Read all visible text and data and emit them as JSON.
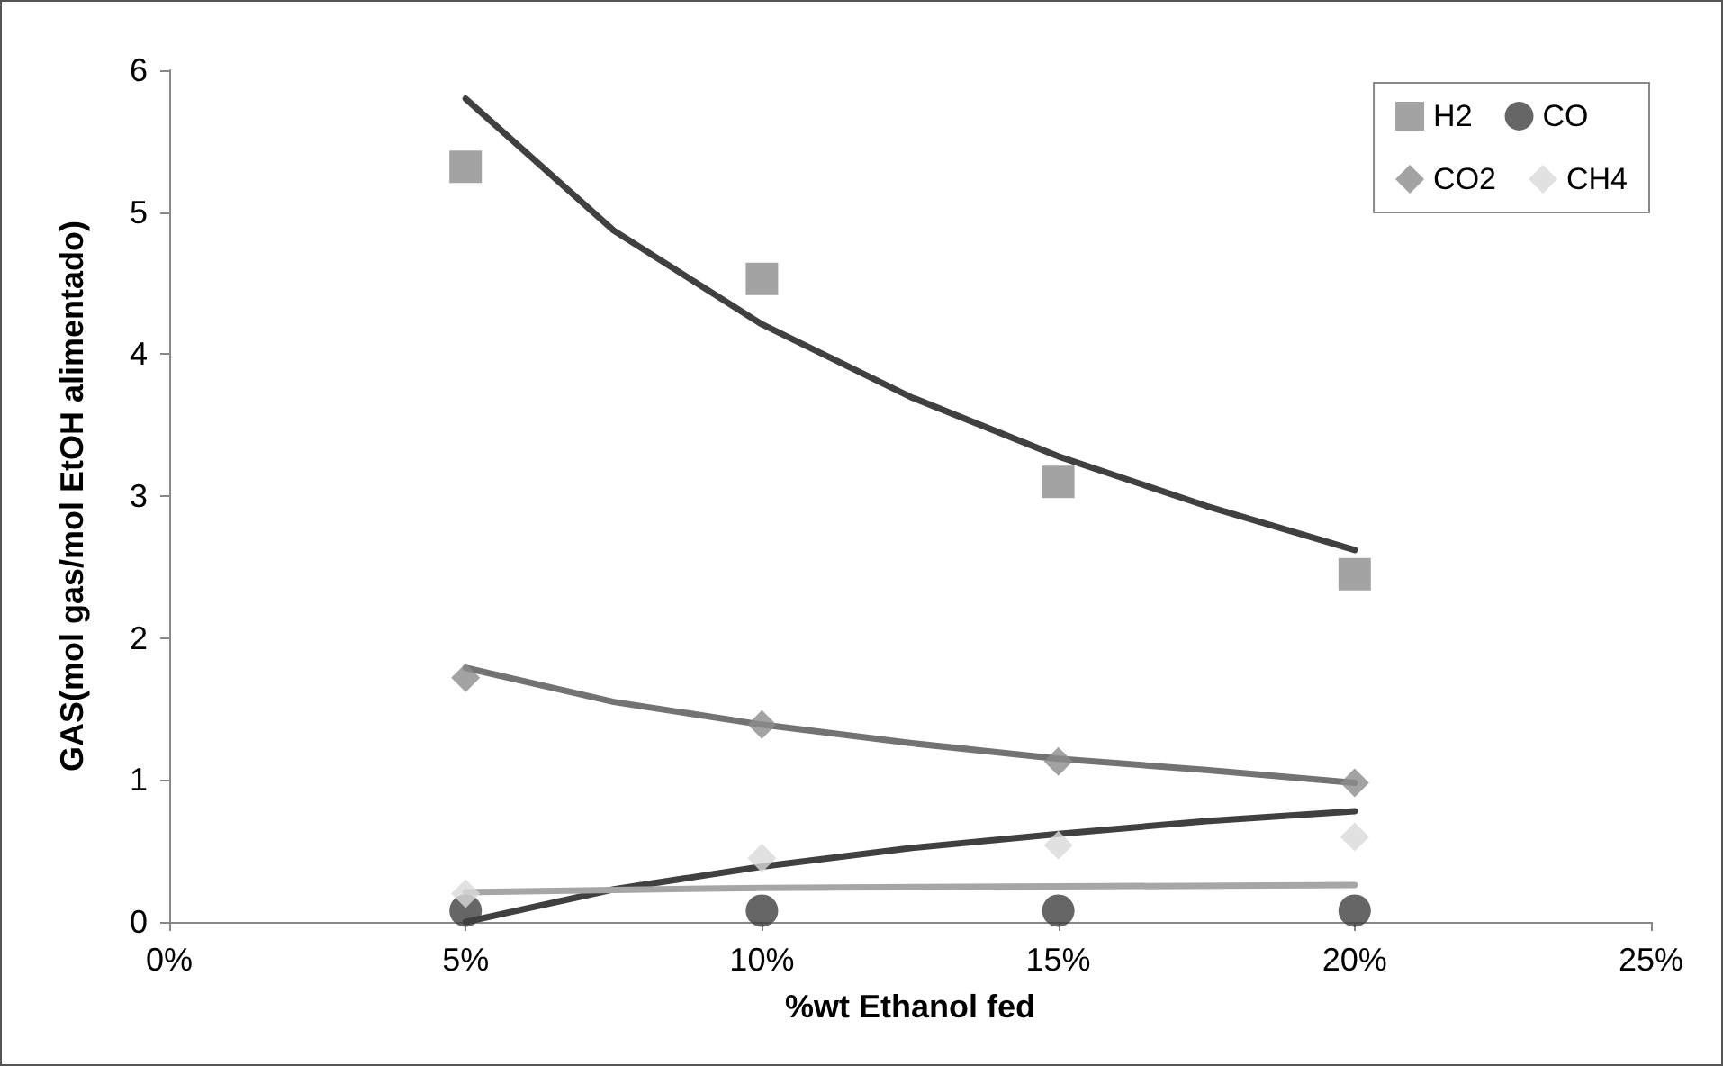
{
  "chart_data": {
    "type": "scatter",
    "xlabel": "%wt Ethanol fed",
    "ylabel": "GAS(mol gas/mol EtOH alimentado)",
    "x": [
      5,
      10,
      15,
      20
    ],
    "xlim": [
      0,
      25
    ],
    "xticks": [
      {
        "value": 0,
        "label": "0%"
      },
      {
        "value": 5,
        "label": "5%"
      },
      {
        "value": 10,
        "label": "10%"
      },
      {
        "value": 15,
        "label": "15%"
      },
      {
        "value": 20,
        "label": "20%"
      },
      {
        "value": 25,
        "label": "25%"
      }
    ],
    "ylim": [
      0,
      6
    ],
    "yticks": [
      0,
      1,
      2,
      3,
      4,
      5,
      6
    ],
    "grid": false,
    "legend": "top right",
    "series": [
      {
        "name": "H2",
        "color": "#8c8c8c",
        "marker": "square",
        "values": [
          5.32,
          4.53,
          3.1,
          2.45
        ]
      },
      {
        "name": "CO",
        "color": "#404040",
        "marker": "circle",
        "values": [
          0.08,
          0.08,
          0.08,
          0.08
        ]
      },
      {
        "name": "CO2",
        "color": "#8c8c8c",
        "marker": "diamond",
        "values": [
          1.72,
          1.39,
          1.13,
          0.98
        ]
      },
      {
        "name": "CH4",
        "color": "#d9d9d9",
        "marker": "diamond",
        "values": [
          0.2,
          0.45,
          0.54,
          0.6
        ]
      },
      {
        "type": "line",
        "color": "#404040",
        "marker": "none",
        "x": [
          5,
          7.5,
          10,
          12.5,
          15,
          17.5,
          20
        ],
        "values": [
          5.8,
          4.87,
          4.21,
          3.7,
          3.28,
          2.93,
          2.62
        ]
      },
      {
        "type": "line",
        "color": "#737373",
        "marker": "none",
        "x": [
          5,
          7.5,
          10,
          12.5,
          15,
          17.5,
          20
        ],
        "values": [
          1.79,
          1.55,
          1.39,
          1.26,
          1.15,
          1.07,
          0.98
        ]
      },
      {
        "type": "line",
        "color": "#404040",
        "marker": "none",
        "x": [
          5,
          7.5,
          10,
          12.5,
          15,
          17.5,
          20
        ],
        "values": [
          0,
          0.23,
          0.39,
          0.52,
          0.62,
          0.71,
          0.78
        ]
      },
      {
        "type": "line",
        "color": "#a6a6a6",
        "marker": "none",
        "x": [
          5,
          10,
          15,
          20
        ],
        "values": [
          0.21,
          0.24,
          0.25,
          0.26
        ]
      }
    ]
  }
}
